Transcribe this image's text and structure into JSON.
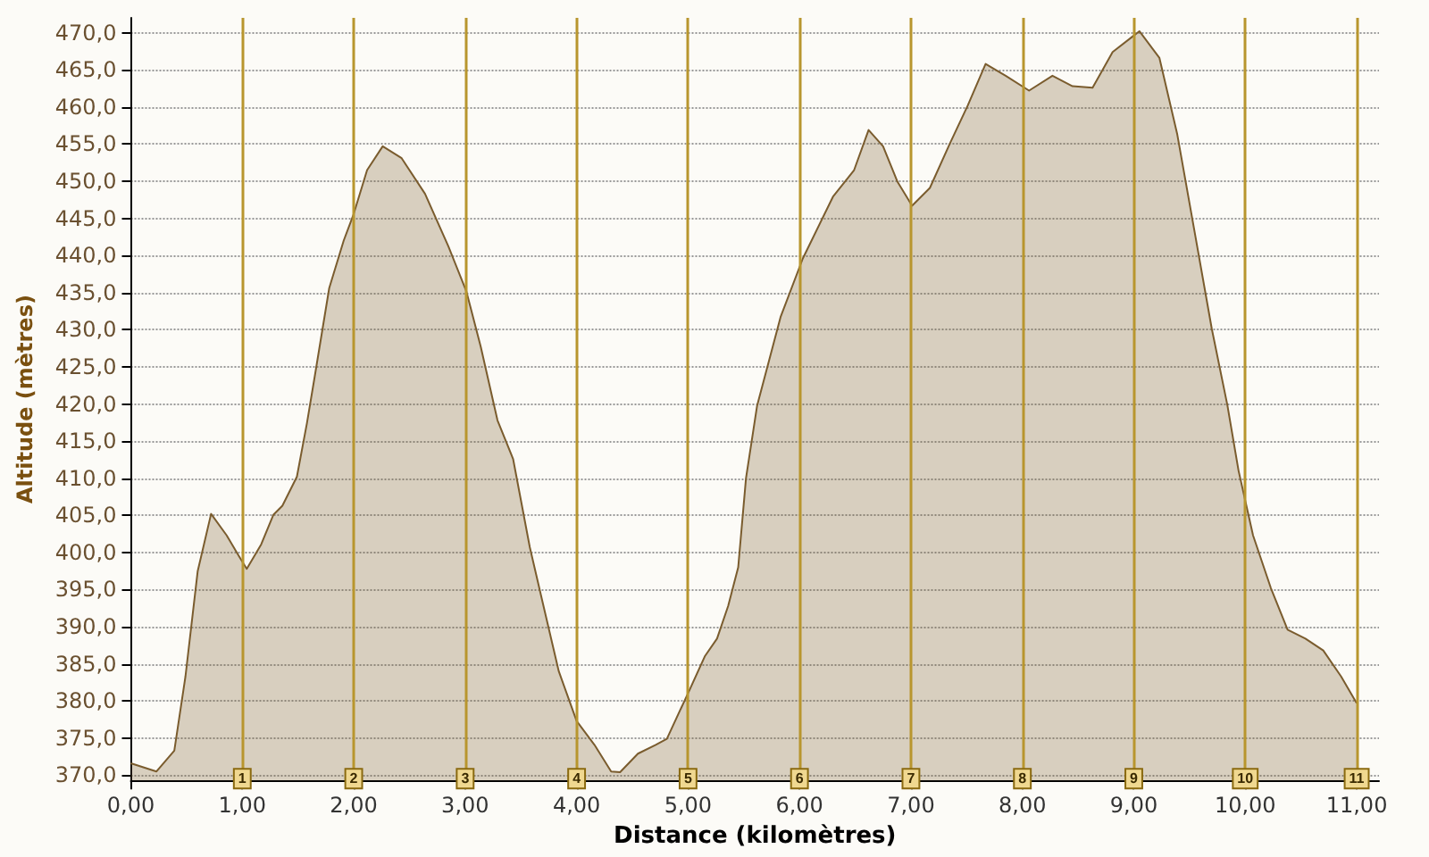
{
  "chart_data": {
    "type": "area",
    "xlabel": "Distance (kilomètres)",
    "ylabel": "Altitude (mètres)",
    "x": [
      0,
      0.23,
      0.39,
      0.49,
      0.6,
      0.72,
      0.86,
      0.97,
      1.04,
      1.17,
      1.28,
      1.36,
      1.49,
      1.58,
      1.65,
      1.78,
      1.91,
      2.0,
      2.12,
      2.26,
      2.43,
      2.64,
      2.85,
      3.01,
      3.14,
      3.29,
      3.43,
      3.58,
      3.69,
      3.84,
      4.0,
      4.16,
      4.31,
      4.39,
      4.55,
      4.71,
      4.81,
      5.02,
      5.15,
      5.26,
      5.36,
      5.45,
      5.52,
      5.62,
      5.83,
      6.03,
      6.3,
      6.49,
      6.62,
      6.75,
      6.88,
      7.01,
      7.17,
      7.35,
      7.51,
      7.67,
      7.85,
      8.06,
      8.27,
      8.45,
      8.63,
      8.81,
      9.05,
      9.23,
      9.39,
      9.55,
      9.7,
      9.84,
      9.94,
      10.07,
      10.23,
      10.38,
      10.54,
      10.7,
      10.86,
      11.0
    ],
    "values": [
      371.6,
      370.5,
      373.3,
      383.3,
      397.5,
      405.2,
      402.3,
      399.5,
      397.8,
      401.1,
      405.1,
      406.3,
      410.2,
      417.4,
      423.7,
      435.6,
      442,
      445.6,
      451.5,
      454.7,
      453.1,
      448.3,
      441.2,
      435.2,
      427.7,
      417.8,
      412.6,
      400.7,
      393.6,
      384,
      377.3,
      374.1,
      370.5,
      370.4,
      372.9,
      374.1,
      374.9,
      381.7,
      386,
      388.4,
      392.8,
      398,
      410,
      419.8,
      431.7,
      439.6,
      447.9,
      451.5,
      456.9,
      454.7,
      449.9,
      446.7,
      449.1,
      455.1,
      460.2,
      465.8,
      464.2,
      462.2,
      464.2,
      462.8,
      462.6,
      467.4,
      470.2,
      466.6,
      456.3,
      442.8,
      430.1,
      419.8,
      411,
      402.3,
      395.2,
      389.6,
      388.4,
      386.8,
      383.3,
      379.7
    ],
    "color": "#7a5c2e",
    "xlim": [
      0,
      11.2
    ],
    "xticks": [
      {
        "value": 0,
        "label": "0,00"
      },
      {
        "value": 1,
        "label": "1,00"
      },
      {
        "value": 2,
        "label": "2,00"
      },
      {
        "value": 3,
        "label": "3,00"
      },
      {
        "value": 4,
        "label": "4,00"
      },
      {
        "value": 5,
        "label": "5,00"
      },
      {
        "value": 6,
        "label": "6,00"
      },
      {
        "value": 7,
        "label": "7,00"
      },
      {
        "value": 8,
        "label": "8,00"
      },
      {
        "value": 9,
        "label": "9,00"
      },
      {
        "value": 10,
        "label": "10,00"
      },
      {
        "value": 11,
        "label": "11,00"
      }
    ],
    "ylim": [
      369.3,
      472
    ],
    "yticks": [
      {
        "value": 370,
        "label": "370,0"
      },
      {
        "value": 375,
        "label": "375,0"
      },
      {
        "value": 380,
        "label": "380,0"
      },
      {
        "value": 385,
        "label": "385,0"
      },
      {
        "value": 390,
        "label": "390,0"
      },
      {
        "value": 395,
        "label": "395,0"
      },
      {
        "value": 400,
        "label": "400,0"
      },
      {
        "value": 405,
        "label": "405,0"
      },
      {
        "value": 410,
        "label": "410,0"
      },
      {
        "value": 415,
        "label": "415,0"
      },
      {
        "value": 420,
        "label": "420,0"
      },
      {
        "value": 425,
        "label": "425,0"
      },
      {
        "value": 430,
        "label": "430,0"
      },
      {
        "value": 435,
        "label": "435,0"
      },
      {
        "value": 440,
        "label": "440,0"
      },
      {
        "value": 445,
        "label": "445,0"
      },
      {
        "value": 450,
        "label": "450,0"
      },
      {
        "value": 455,
        "label": "455,0"
      },
      {
        "value": 460,
        "label": "460,0"
      },
      {
        "value": 465,
        "label": "465,0"
      },
      {
        "value": 470,
        "label": "470,0"
      }
    ],
    "ref_lines": [
      {
        "axis": "x",
        "value": 1,
        "label": "1",
        "color": "#b8962e"
      },
      {
        "axis": "x",
        "value": 2,
        "label": "2",
        "color": "#b8962e"
      },
      {
        "axis": "x",
        "value": 3,
        "label": "3",
        "color": "#b8962e"
      },
      {
        "axis": "x",
        "value": 4,
        "label": "4",
        "color": "#b8962e"
      },
      {
        "axis": "x",
        "value": 5,
        "label": "5",
        "color": "#b8962e"
      },
      {
        "axis": "x",
        "value": 6,
        "label": "6",
        "color": "#b8962e"
      },
      {
        "axis": "x",
        "value": 7,
        "label": "7",
        "color": "#b8962e"
      },
      {
        "axis": "x",
        "value": 8,
        "label": "8",
        "color": "#b8962e"
      },
      {
        "axis": "x",
        "value": 9,
        "label": "9",
        "color": "#b8962e"
      },
      {
        "axis": "x",
        "value": 10,
        "label": "10",
        "color": "#b8962e"
      },
      {
        "axis": "x",
        "value": 11,
        "label": "11",
        "color": "#b8962e"
      }
    ],
    "grid": "y",
    "marker": "none",
    "line_style": "solid"
  }
}
